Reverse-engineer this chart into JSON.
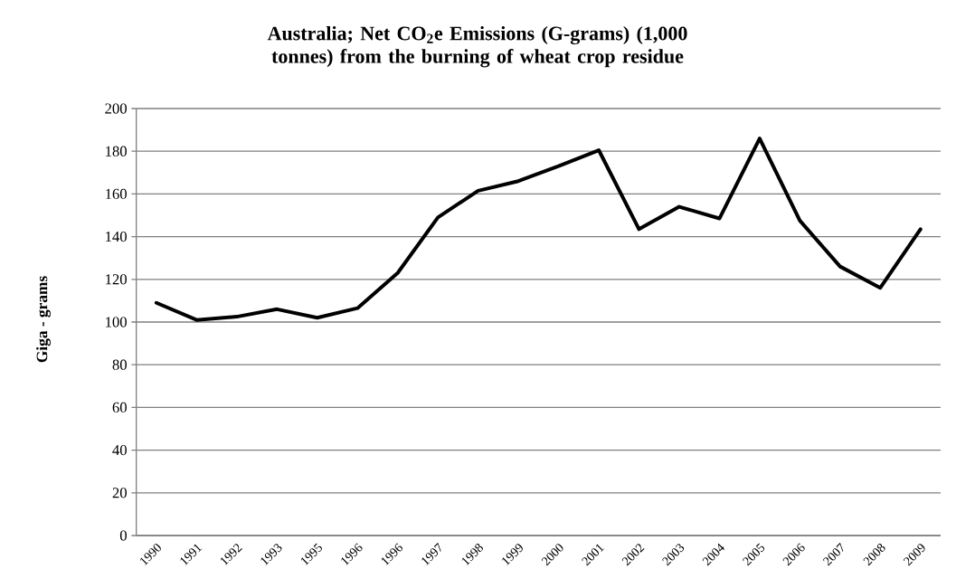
{
  "chart_data": {
    "type": "line",
    "title": "Australia;  Net CO$_{2}$e Emissions (G-grams) (1,000 tonnes) from the burning of wheat crop residue",
    "ylabel": "Giga - grams",
    "categories": [
      "1990",
      "1991",
      "1992",
      "1993",
      "1995",
      "1996",
      "1996",
      "1997",
      "1998",
      "1999",
      "2000",
      "2001",
      "2002",
      "2003",
      "2004",
      "2005",
      "2006",
      "2007",
      "2008",
      "2009"
    ],
    "series": [
      {
        "color": "#000000",
        "values": [
          109,
          101,
          102.5,
          106,
          102,
          106.5,
          123,
          149,
          161.5,
          166,
          173,
          180.5,
          143.5,
          154,
          148.5,
          186,
          147.5,
          126,
          116,
          143.5
        ]
      }
    ],
    "ylim": [
      0,
      200
    ],
    "yticks": [
      0,
      20,
      40,
      60,
      80,
      100,
      120,
      140,
      160,
      180,
      200
    ],
    "grid": "y",
    "marker": "none",
    "line_style": "solid"
  }
}
